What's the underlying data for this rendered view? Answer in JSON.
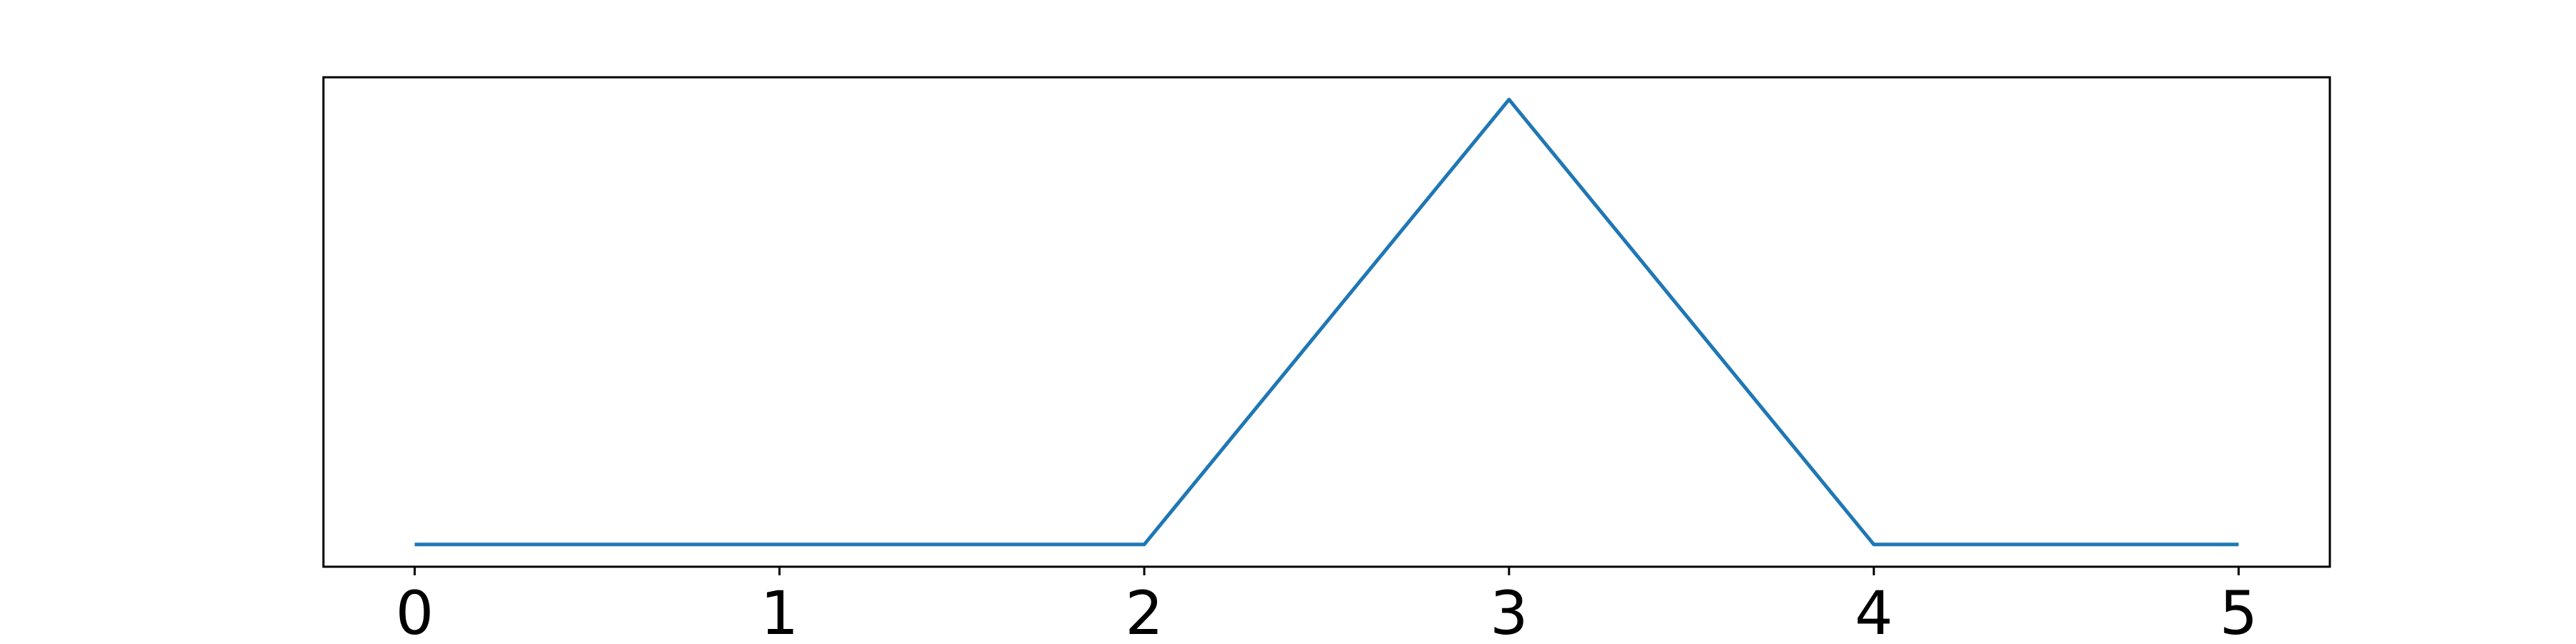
{
  "chart_data": {
    "type": "line",
    "title": "",
    "xlabel": "",
    "ylabel": "",
    "x": [
      0,
      1,
      2,
      3,
      4,
      5
    ],
    "series": [
      {
        "values": [
          0,
          0,
          0,
          1,
          0,
          0
        ],
        "color": "#1f77b4"
      }
    ],
    "xticks": [
      "0",
      "1",
      "2",
      "3",
      "4",
      "5"
    ],
    "yticks": [],
    "xlim": [
      -0.25,
      5.25
    ],
    "ylim": [
      -0.05,
      1.05
    ],
    "grid": false,
    "legend": false
  }
}
